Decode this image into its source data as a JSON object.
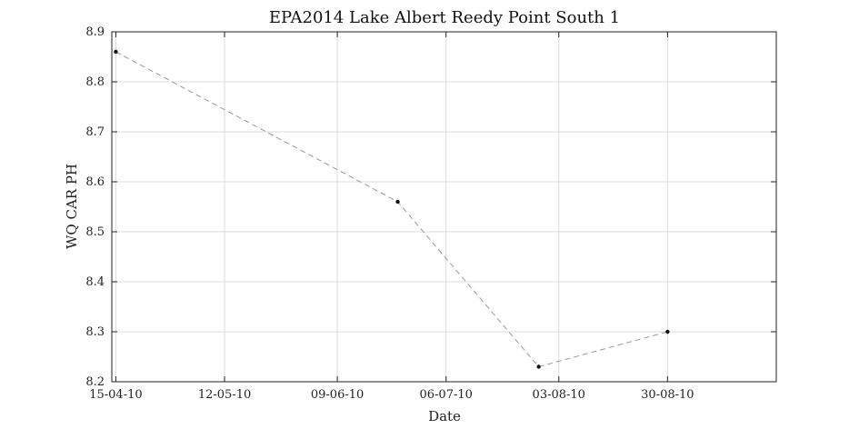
{
  "chart_data": {
    "type": "line",
    "title": "EPA2014 Lake Albert Reedy Point South 1",
    "xlabel": "Date",
    "ylabel": "WQ CAR PH",
    "x_tick_labels": [
      "15-04-10",
      "12-05-10",
      "09-06-10",
      "06-07-10",
      "03-08-10",
      "30-08-10"
    ],
    "x_tick_dates": [
      "2010-04-15",
      "2010-05-12",
      "2010-06-09",
      "2010-07-06",
      "2010-08-03",
      "2010-08-30"
    ],
    "xlim": [
      "2010-04-14",
      "2010-09-26"
    ],
    "ylim": [
      8.2,
      8.9
    ],
    "y_ticks": [
      8.2,
      8.3,
      8.4,
      8.5,
      8.6,
      8.7,
      8.8,
      8.9
    ],
    "grid": true,
    "series": [
      {
        "x": [
          "2010-04-15",
          "2010-06-24",
          "2010-07-29",
          "2010-08-30"
        ],
        "y": [
          8.86,
          8.56,
          8.23,
          8.3
        ]
      }
    ],
    "line_color": "#999999",
    "marker_color": "#111111"
  }
}
